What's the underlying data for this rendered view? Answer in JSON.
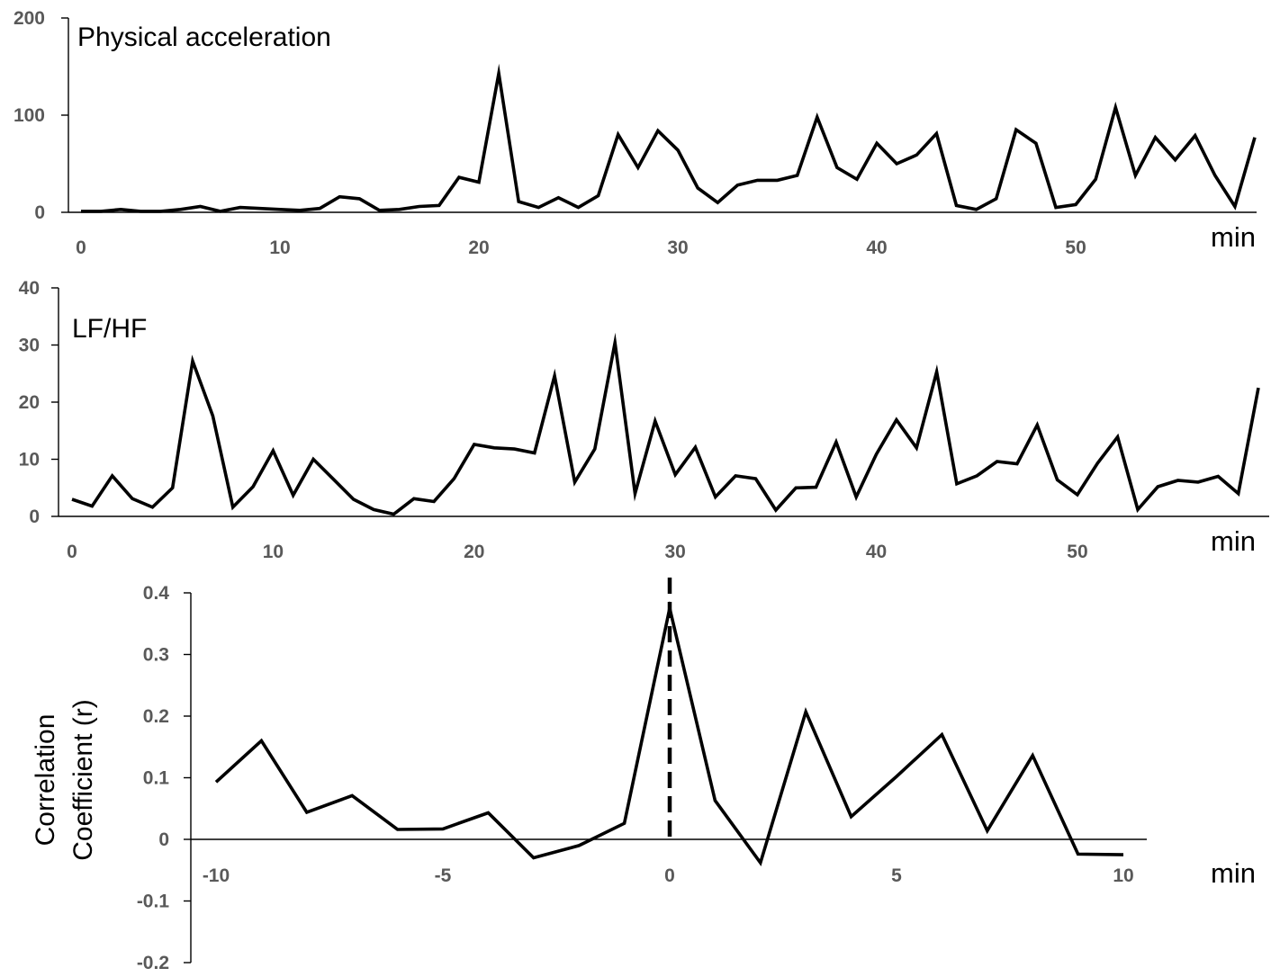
{
  "chart_data": [
    {
      "type": "line",
      "title": "Physical acceleration",
      "xlabel": "min",
      "ylabel": "",
      "xlim": [
        0,
        59
      ],
      "ylim": [
        0,
        200
      ],
      "xticks": [
        0,
        10,
        20,
        30,
        40,
        50
      ],
      "yticks": [
        0,
        100,
        200
      ],
      "grid": false,
      "series": [
        {
          "x": [
            0,
            1,
            2,
            3,
            4,
            5,
            6,
            7,
            8,
            9,
            10,
            11,
            12,
            13,
            14,
            15,
            16,
            17,
            18,
            19,
            20,
            21,
            22,
            23,
            24,
            25,
            26,
            27,
            28,
            29,
            30,
            31,
            32,
            33,
            34,
            35,
            36,
            37,
            38,
            39,
            40,
            41,
            42,
            43,
            44,
            45,
            46,
            47,
            48,
            49,
            50,
            51,
            52,
            53,
            54,
            55,
            56,
            57,
            58,
            59
          ],
          "values": [
            1,
            1,
            3,
            1,
            1,
            3,
            6,
            1,
            5,
            4,
            3,
            2,
            4,
            16,
            14,
            2,
            3,
            6,
            7,
            36,
            31,
            143,
            11,
            5,
            15,
            5,
            17,
            80,
            46,
            84,
            64,
            25,
            10,
            28,
            33,
            33,
            38,
            98,
            46,
            34,
            71,
            50,
            59,
            81,
            7,
            3,
            14,
            85,
            71,
            5,
            8,
            34,
            108,
            38,
            77,
            54,
            79,
            38,
            6,
            77
          ]
        }
      ]
    },
    {
      "type": "line",
      "title": "LF/HF",
      "xlabel": "min",
      "ylabel": "",
      "xlim": [
        0,
        59
      ],
      "ylim": [
        0,
        40
      ],
      "xticks": [
        0,
        10,
        20,
        30,
        40,
        50
      ],
      "yticks": [
        0,
        10,
        20,
        30,
        40
      ],
      "grid": false,
      "series": [
        {
          "x": [
            0,
            1,
            2,
            3,
            4,
            5,
            6,
            7,
            8,
            9,
            10,
            11,
            12,
            13,
            14,
            15,
            16,
            17,
            18,
            19,
            20,
            21,
            22,
            23,
            24,
            25,
            26,
            27,
            28,
            29,
            30,
            31,
            32,
            33,
            34,
            35,
            36,
            37,
            38,
            39,
            40,
            41,
            42,
            43,
            44,
            45,
            46,
            47,
            48,
            49,
            50,
            51,
            52,
            53,
            54,
            55,
            56,
            57,
            58,
            59
          ],
          "values": [
            3,
            1.8,
            7.1,
            3.1,
            1.6,
            5,
            27.2,
            17.6,
            1.6,
            5.2,
            11.5,
            3.7,
            10,
            6.5,
            3,
            1.2,
            0.4,
            3.1,
            2.6,
            6.6,
            12.6,
            12,
            11.8,
            11.1,
            24.6,
            6,
            11.8,
            30.4,
            4,
            16.7,
            7.3,
            12.1,
            3.4,
            7.1,
            6.6,
            1.1,
            5,
            5.1,
            13,
            3.4,
            10.9,
            16.9,
            12,
            25.3,
            5.7,
            7.1,
            9.6,
            9.2,
            16,
            6.4,
            3.8,
            9.3,
            13.9,
            1.2,
            5.2,
            6.3,
            6,
            7,
            4,
            22.5
          ]
        }
      ]
    },
    {
      "type": "line",
      "title": "",
      "xlabel": "min",
      "ylabel": "Correlation Coefficient (r)",
      "ylabel_lines": [
        "Correlation",
        "Coefficient (r)"
      ],
      "xlim": [
        -10,
        10
      ],
      "ylim": [
        -0.2,
        0.4
      ],
      "xticks": [
        -10,
        -5,
        0,
        5,
        10
      ],
      "yticks": [
        -0.2,
        -0.1,
        0,
        0.1,
        0.2,
        0.3,
        0.4
      ],
      "ytick_labels": [
        "-0.2",
        "-0.1",
        "0",
        "0.1",
        "0.2",
        "0.3",
        "0.4"
      ],
      "grid": false,
      "reference_line": {
        "x": 0,
        "style": "dashed"
      },
      "series": [
        {
          "x": [
            -10,
            -9,
            -8,
            -7,
            -6,
            -5,
            -4,
            -3,
            -2,
            -1,
            0,
            1,
            2,
            3,
            4,
            5,
            6,
            7,
            8,
            9,
            10
          ],
          "values": [
            0.093,
            0.16,
            0.044,
            0.071,
            0.016,
            0.017,
            0.043,
            -0.03,
            -0.01,
            0.026,
            0.375,
            0.063,
            -0.038,
            0.207,
            0.037,
            0.102,
            0.17,
            0.014,
            0.136,
            -0.024,
            -0.025
          ]
        }
      ]
    }
  ]
}
